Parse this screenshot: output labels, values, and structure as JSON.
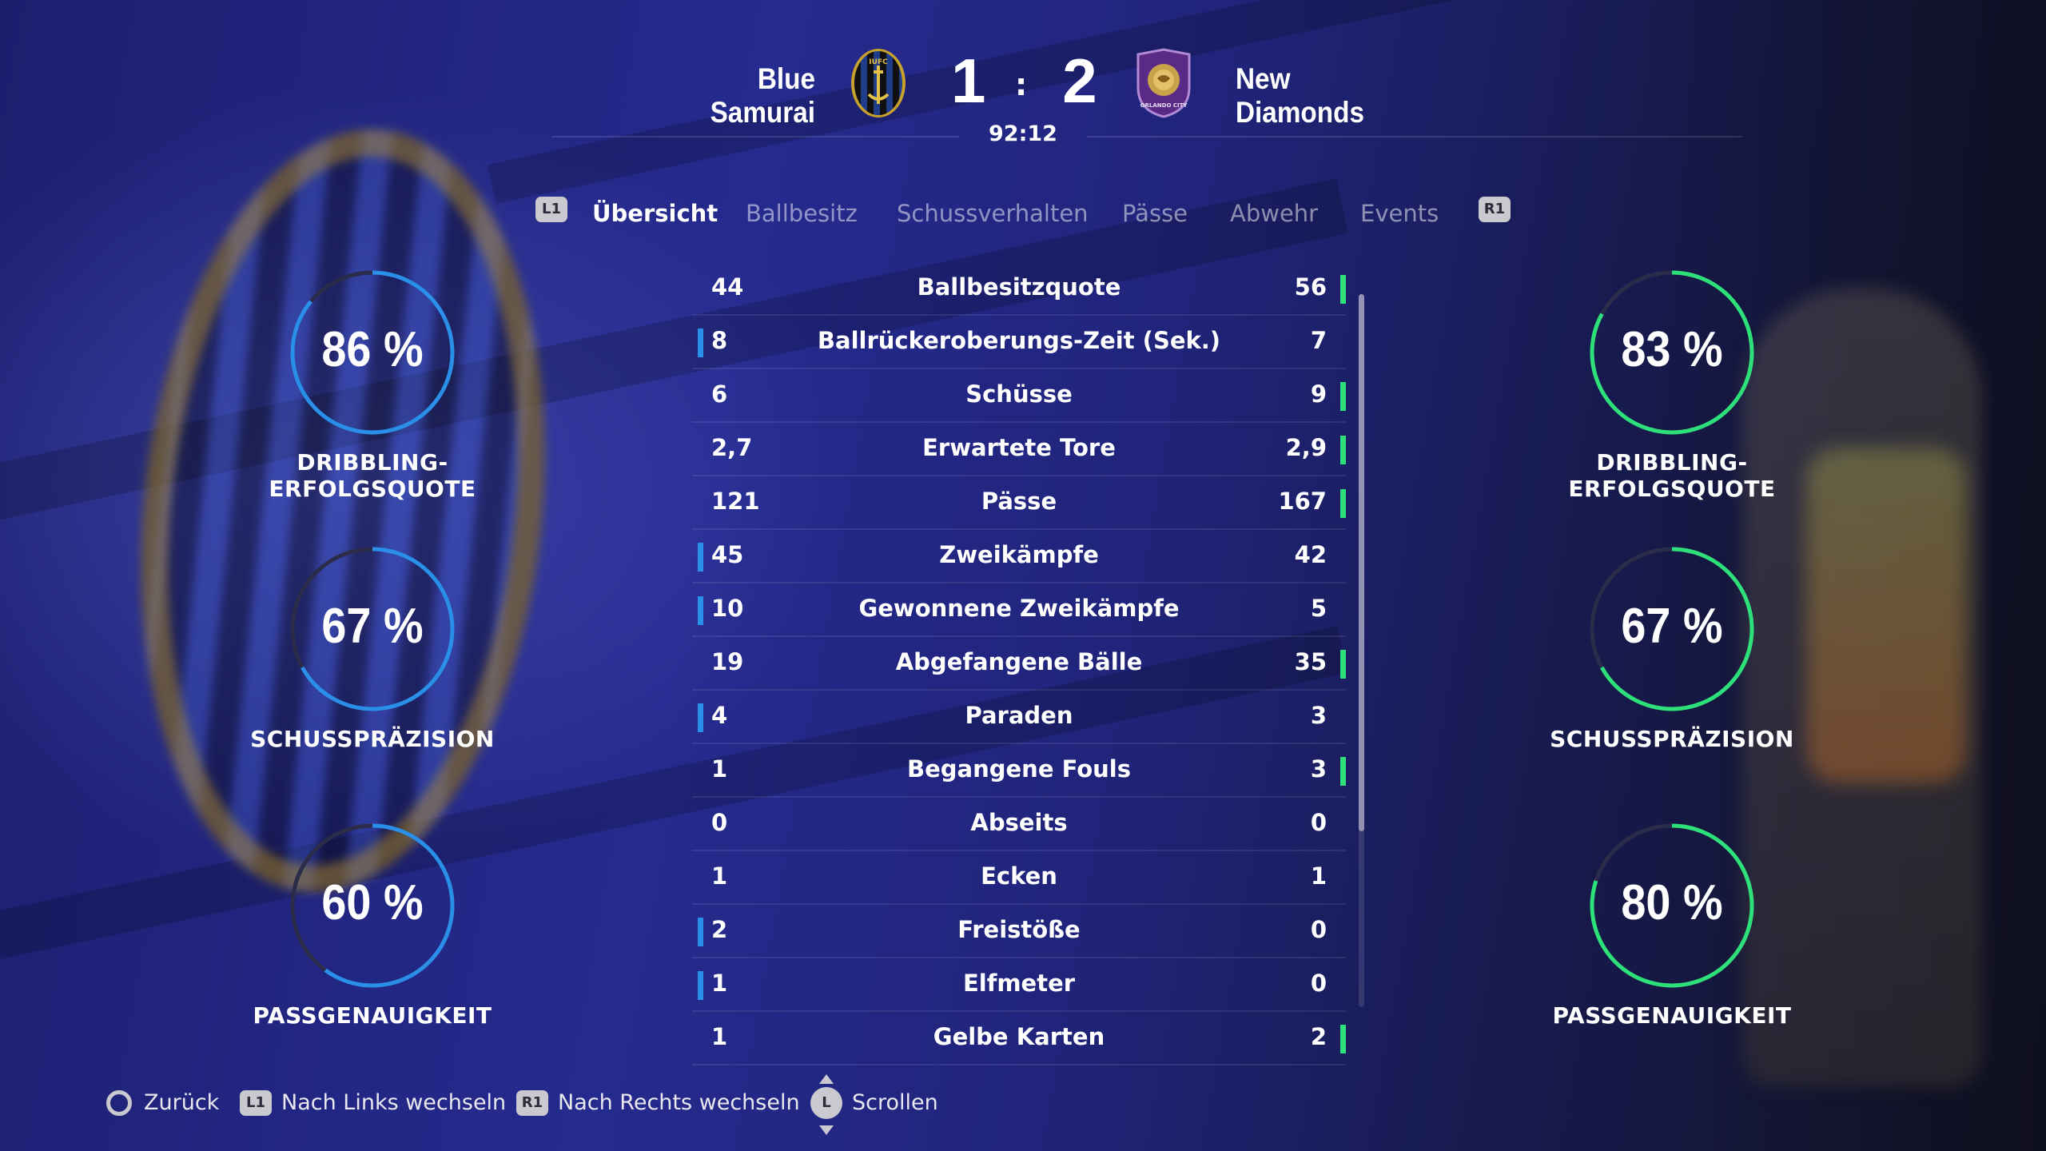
{
  "header": {
    "home_team": "Blue Samurai",
    "away_team": "New Diamonds",
    "home_score": "1",
    "away_score": "2",
    "separator": ":",
    "clock": "92:12",
    "home_crest_text": "IUFC",
    "away_crest_text": "ORLANDO CITY"
  },
  "tabs": {
    "left_key": "L1",
    "right_key": "R1",
    "items": [
      {
        "label": "Übersicht",
        "active": true
      },
      {
        "label": "Ballbesitz",
        "active": false
      },
      {
        "label": "Schussverhalten",
        "active": false
      },
      {
        "label": "Pässe",
        "active": false
      },
      {
        "label": "Abwehr",
        "active": false
      },
      {
        "label": "Events",
        "active": false
      }
    ]
  },
  "home_rings": [
    {
      "value": "86 %",
      "percent": 86,
      "label": "DRIBBLING-ERFOLGSQUOTE"
    },
    {
      "value": "67 %",
      "percent": 67,
      "label": "SCHUSSPRÄZISION"
    },
    {
      "value": "60 %",
      "percent": 60,
      "label": "PASSGENAUIGKEIT"
    }
  ],
  "away_rings": [
    {
      "value": "83 %",
      "percent": 83,
      "label": "DRIBBLING-ERFOLGSQUOTE"
    },
    {
      "value": "67 %",
      "percent": 67,
      "label": "SCHUSSPRÄZISION"
    },
    {
      "value": "80 %",
      "percent": 80,
      "label": "PASSGENAUIGKEIT"
    }
  ],
  "stats": [
    {
      "label": "Ballbesitzquote",
      "home": "44",
      "away": "56",
      "leader": "away"
    },
    {
      "label": "Ballrückeroberungs-Zeit (Sek.)",
      "home": "8",
      "away": "7",
      "leader": "home"
    },
    {
      "label": "Schüsse",
      "home": "6",
      "away": "9",
      "leader": "away"
    },
    {
      "label": "Erwartete Tore",
      "home": "2,7",
      "away": "2,9",
      "leader": "away"
    },
    {
      "label": "Pässe",
      "home": "121",
      "away": "167",
      "leader": "away"
    },
    {
      "label": "Zweikämpfe",
      "home": "45",
      "away": "42",
      "leader": "home"
    },
    {
      "label": "Gewonnene Zweikämpfe",
      "home": "10",
      "away": "5",
      "leader": "home"
    },
    {
      "label": "Abgefangene Bälle",
      "home": "19",
      "away": "35",
      "leader": "away"
    },
    {
      "label": "Paraden",
      "home": "4",
      "away": "3",
      "leader": "home"
    },
    {
      "label": "Begangene Fouls",
      "home": "1",
      "away": "3",
      "leader": "away"
    },
    {
      "label": "Abseits",
      "home": "0",
      "away": "0",
      "leader": "none"
    },
    {
      "label": "Ecken",
      "home": "1",
      "away": "1",
      "leader": "none"
    },
    {
      "label": "Freistöße",
      "home": "2",
      "away": "0",
      "leader": "home"
    },
    {
      "label": "Elfmeter",
      "home": "1",
      "away": "0",
      "leader": "home"
    },
    {
      "label": "Gelbe Karten",
      "home": "1",
      "away": "2",
      "leader": "away"
    }
  ],
  "footer": {
    "back_label": "Zurück",
    "l1_key": "L1",
    "left_label": "Nach Links wechseln",
    "r1_key": "R1",
    "right_label": "Nach Rechts wechseln",
    "stick_key": "L",
    "scroll_label": "Scrollen"
  },
  "colors": {
    "home_accent": "#2a8fe8",
    "away_accent": "#2ee07a",
    "ring_track": "#2a2c4a",
    "away_crest": "#5b2a86",
    "home_crest": "#c7a12a"
  }
}
